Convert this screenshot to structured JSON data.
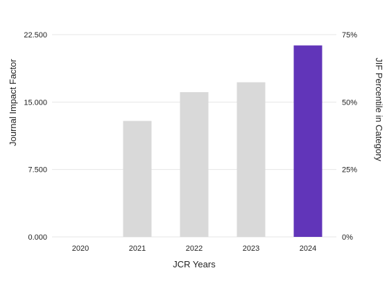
{
  "chart_data": {
    "type": "bar",
    "categories": [
      "2020",
      "2021",
      "2022",
      "2023",
      "2024"
    ],
    "values": [
      null,
      12.9,
      16.1,
      17.2,
      21.3
    ],
    "xlabel": "JCR Years",
    "ylabel": "Journal Impact Factor",
    "y2label": "JIF Percentile in Category",
    "ylim": [
      0,
      22.5
    ],
    "y2lim": [
      0,
      75
    ],
    "yticks": [
      "0.000",
      "7.500",
      "15.000",
      "22.500"
    ],
    "y2ticks": [
      "0%",
      "25%",
      "50%",
      "75%"
    ],
    "grid": true,
    "highlight_category": "2024",
    "colors": {
      "bar": "#d9d9d9",
      "highlight": "#6135b9",
      "grid": "#e6e6e6"
    }
  }
}
